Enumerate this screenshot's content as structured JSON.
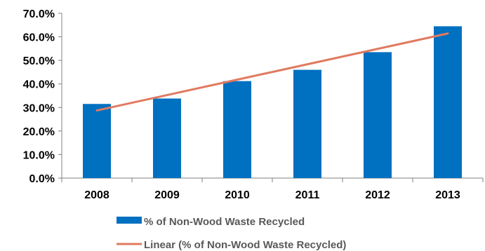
{
  "colors": {
    "bar": "#0070C0",
    "trendline": "#E07A5F",
    "axis": "#808080",
    "text": "#000000",
    "legend_text": "#595959"
  },
  "chart_data": {
    "type": "bar",
    "categories": [
      "2008",
      "2009",
      "2010",
      "2011",
      "2012",
      "2013"
    ],
    "series": [
      {
        "name": "% of Non-Wood Waste Recycled",
        "values": [
          31.5,
          33.8,
          41.2,
          46.0,
          53.5,
          64.5
        ]
      }
    ],
    "trendline": {
      "name": "Linear (% of Non-Wood Waste Recycled)",
      "type": "linear"
    },
    "ylim": [
      0,
      70
    ],
    "yticks": [
      0,
      10,
      20,
      30,
      40,
      50,
      60,
      70
    ],
    "ytick_labels": [
      "0.0%",
      "10.0%",
      "20.0%",
      "30.0%",
      "40.0%",
      "50.0%",
      "60.0%",
      "70.0%"
    ],
    "grid": false,
    "legend_position": "bottom",
    "title": "",
    "xlabel": "",
    "ylabel": ""
  }
}
